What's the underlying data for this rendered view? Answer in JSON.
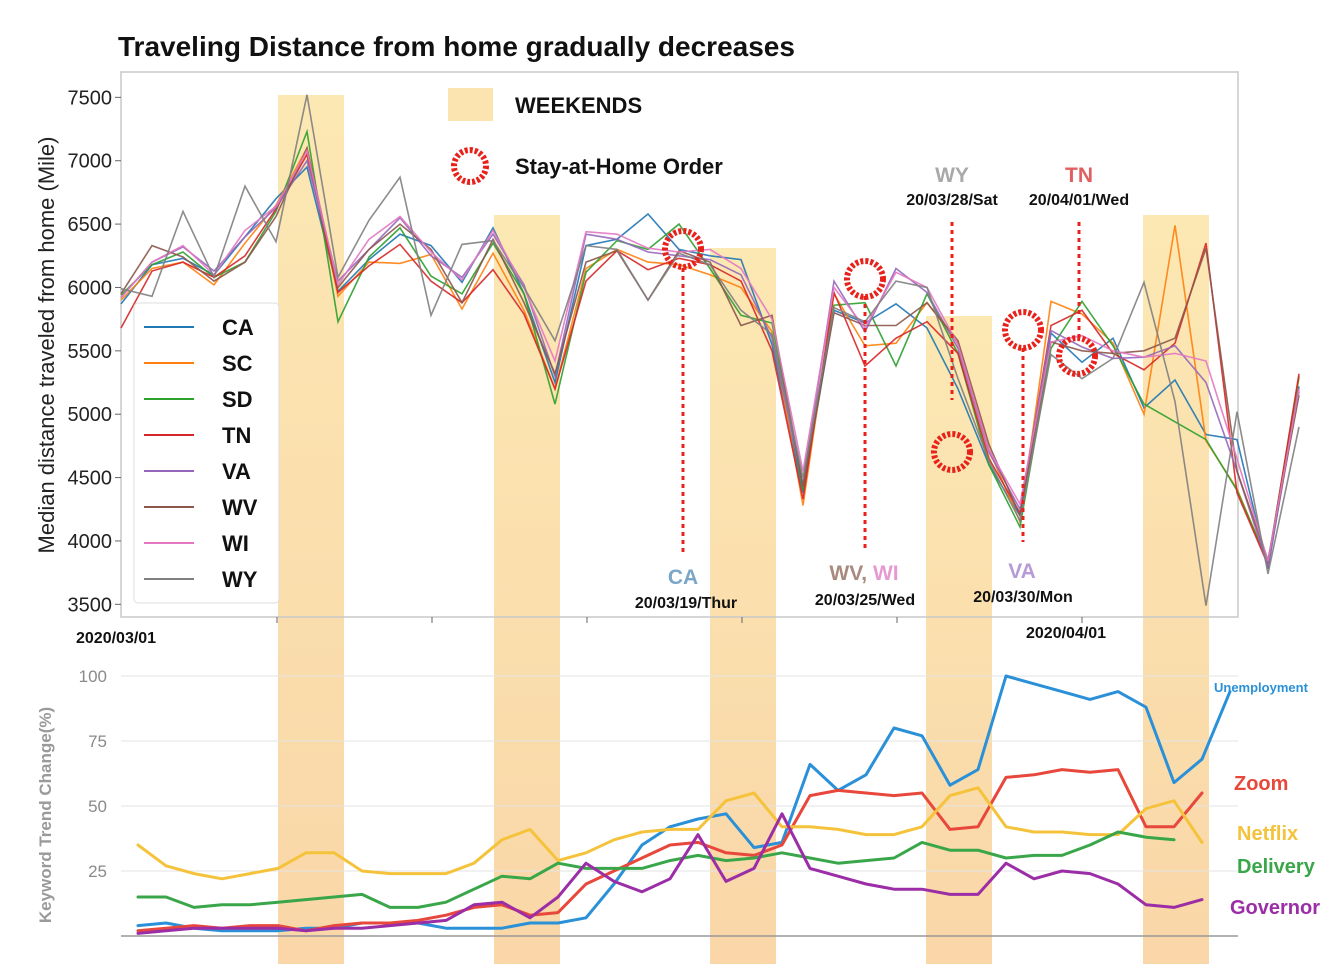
{
  "chart_data": [
    {
      "type": "line",
      "title": "Traveling Distance from home gradually decreases",
      "xlabel": "",
      "ylabel": "Median distance traveled from home (Mile)",
      "ylim": [
        3400,
        7700
      ],
      "yticks": [
        3500,
        4000,
        4500,
        5000,
        5500,
        6000,
        6500,
        7000,
        7500
      ],
      "xtick_labels": [
        "2020/03/01",
        "2020/04/01"
      ],
      "legend_position": "left",
      "grid": false,
      "key": {
        "weekends": "WEEKENDS",
        "order": "Stay-at-Home Order"
      },
      "x_index_meaning": "day index, 0 = 2020-02-27",
      "series": [
        {
          "name": "CA",
          "color": "#1f77b4",
          "values": [
            5870,
            6180,
            6230,
            6100,
            6400,
            6700,
            6950,
            5970,
            6220,
            6420,
            6330,
            6040,
            6470,
            5950,
            5250,
            6330,
            6380,
            6580,
            6300,
            6250,
            6220,
            5550,
            4380,
            5820,
            5720,
            5870,
            5680,
            5200,
            4600,
            4200,
            5640,
            5410,
            5600,
            5050,
            5270,
            4840,
            4800,
            3780,
            5220
          ]
        },
        {
          "name": "SC",
          "color": "#ff7f0e",
          "values": [
            5900,
            6150,
            6200,
            6020,
            6350,
            6650,
            7100,
            5930,
            6200,
            6190,
            6260,
            5830,
            6270,
            5820,
            5200,
            6150,
            6300,
            6200,
            6180,
            6100,
            6000,
            5650,
            4280,
            5950,
            5540,
            5560,
            5880,
            5560,
            4720,
            4150,
            5890,
            5790,
            5560,
            5000,
            6490,
            4790,
            4410,
            3830,
            5290
          ]
        },
        {
          "name": "SD",
          "color": "#2ca02c",
          "values": [
            5940,
            6180,
            6280,
            6080,
            6200,
            6600,
            7230,
            5730,
            6240,
            6470,
            6090,
            5950,
            6350,
            5950,
            5080,
            6120,
            6370,
            6300,
            6500,
            6150,
            5780,
            5720,
            4400,
            5860,
            5880,
            5380,
            5950,
            5480,
            4600,
            4110,
            5520,
            5890,
            5540,
            5080,
            4940,
            4800,
            4400,
            3830,
            5300
          ]
        },
        {
          "name": "TN",
          "color": "#d62728",
          "values": [
            5680,
            6130,
            6200,
            6080,
            6250,
            6620,
            7050,
            5960,
            6170,
            6340,
            6050,
            5880,
            6140,
            5790,
            5200,
            6050,
            6290,
            6140,
            6230,
            6180,
            6050,
            5500,
            4330,
            5960,
            5380,
            5600,
            5730,
            5480,
            4650,
            4220,
            5700,
            5820,
            5480,
            5350,
            5560,
            6350,
            4380,
            3810,
            5320
          ]
        },
        {
          "name": "VA",
          "color": "#9467bd",
          "values": [
            5920,
            6200,
            6320,
            6130,
            6400,
            6630,
            7000,
            6050,
            6300,
            6550,
            6250,
            6080,
            6420,
            6020,
            5300,
            6420,
            6380,
            6280,
            6250,
            6220,
            6100,
            5600,
            4450,
            6050,
            5650,
            6150,
            5960,
            5520,
            4700,
            4250,
            5660,
            5530,
            5440,
            5450,
            5540,
            5250,
            4550,
            3800,
            5180
          ]
        },
        {
          "name": "WV",
          "color": "#8c564b",
          "values": [
            5950,
            6330,
            6240,
            6050,
            6200,
            6560,
            7100,
            6000,
            6300,
            6500,
            6300,
            5880,
            6380,
            5880,
            5320,
            6200,
            6290,
            5900,
            6290,
            6200,
            5700,
            5780,
            4430,
            5800,
            5700,
            5700,
            5880,
            5580,
            4760,
            4200,
            5570,
            5500,
            5480,
            5500,
            5600,
            6310,
            4550,
            3850,
            5150
          ]
        },
        {
          "name": "WI",
          "color": "#e377c2",
          "values": [
            5920,
            6200,
            6330,
            6100,
            6450,
            6640,
            7080,
            6020,
            6380,
            6560,
            6280,
            6060,
            6450,
            6000,
            5420,
            6440,
            6420,
            6310,
            6280,
            6300,
            6150,
            5750,
            4550,
            6000,
            5680,
            6120,
            6000,
            5550,
            4720,
            4290,
            5570,
            5620,
            5500,
            5450,
            5480,
            5420,
            4650,
            3840,
            5200
          ]
        },
        {
          "name": "WY",
          "color": "#7f7f7f",
          "values": [
            5990,
            5930,
            6600,
            6080,
            6800,
            6360,
            7520,
            6080,
            6530,
            6870,
            5780,
            6340,
            6370,
            6000,
            5580,
            6330,
            6300,
            5900,
            6270,
            6180,
            5820,
            5630,
            4500,
            5840,
            5730,
            6050,
            6000,
            5280,
            4630,
            4160,
            5470,
            5280,
            5440,
            6040,
            5100,
            3490,
            5020,
            3740,
            4900
          ]
        }
      ],
      "annotations": [
        {
          "state": "CA",
          "date": "20/03/19/Thur",
          "color": "#7aa6c8"
        },
        {
          "state": "WV, ",
          "state2": "WI",
          "date": "20/03/25/Wed",
          "color": "#a88a7e",
          "color2": "#e59ad2"
        },
        {
          "state": "WY",
          "date": "20/03/28/Sat",
          "color": "#a9a9a9"
        },
        {
          "state": "VA",
          "date": "20/03/30/Mon",
          "color": "#b79ad6"
        },
        {
          "state": "TN",
          "date": "20/04/01/Wed",
          "color": "#e06060"
        }
      ]
    },
    {
      "type": "line",
      "title": "",
      "xlabel": "",
      "ylabel": "Keyword Trend Change(%)",
      "ylim": [
        0,
        105
      ],
      "yticks": [
        25,
        50,
        75,
        100
      ],
      "grid": true,
      "series": [
        {
          "name": "Unemployment",
          "color": "#2a90d8",
          "values": [
            4,
            5,
            3,
            2,
            2,
            2,
            3,
            3,
            5,
            5,
            5,
            3,
            3,
            3,
            5,
            5,
            7,
            20,
            35,
            42,
            45,
            47,
            34,
            36,
            66,
            56,
            62,
            80,
            77,
            58,
            64,
            100,
            97,
            94,
            91,
            94,
            88,
            59,
            68,
            94
          ]
        },
        {
          "name": "Zoom",
          "color": "#e8473b",
          "values": [
            2,
            3,
            4,
            3,
            4,
            4,
            2,
            4,
            5,
            5,
            6,
            8,
            11,
            12,
            8,
            9,
            20,
            25,
            30,
            35,
            36,
            32,
            31,
            35,
            54,
            56,
            55,
            54,
            55,
            41,
            42,
            61,
            62,
            64,
            63,
            64,
            42,
            42,
            55
          ]
        },
        {
          "name": "Netflix",
          "color": "#f5c33b",
          "values": [
            35,
            27,
            24,
            22,
            24,
            26,
            32,
            32,
            25,
            24,
            24,
            24,
            28,
            37,
            41,
            29,
            32,
            37,
            40,
            41,
            41,
            52,
            55,
            42,
            42,
            41,
            39,
            39,
            42,
            54,
            57,
            42,
            40,
            40,
            39,
            39,
            49,
            52,
            36
          ]
        },
        {
          "name": "Delivery",
          "color": "#3aa64a",
          "values": [
            15,
            15,
            11,
            12,
            12,
            13,
            14,
            15,
            16,
            11,
            11,
            13,
            18,
            23,
            22,
            28,
            26,
            26,
            26,
            29,
            31,
            29,
            30,
            32,
            30,
            28,
            29,
            30,
            36,
            33,
            33,
            30,
            31,
            31,
            35,
            40,
            38,
            37
          ]
        },
        {
          "name": "Governor",
          "color": "#9b2ea6",
          "values": [
            1,
            2,
            3,
            3,
            3,
            3,
            2,
            3,
            3,
            4,
            5,
            6,
            12,
            13,
            7,
            15,
            28,
            21,
            17,
            22,
            39,
            21,
            26,
            47,
            26,
            23,
            20,
            18,
            18,
            16,
            16,
            28,
            22,
            25,
            24,
            20,
            12,
            11,
            14
          ]
        }
      ]
    }
  ]
}
